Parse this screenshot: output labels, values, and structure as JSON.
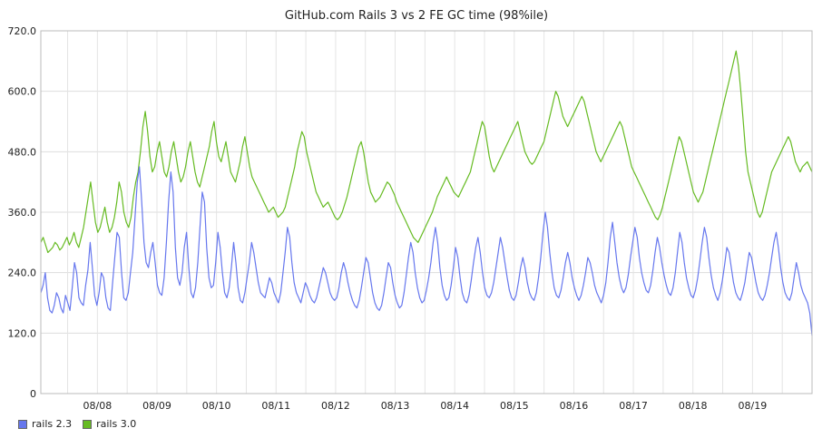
{
  "chart_data": {
    "type": "line",
    "title": "GitHub.com Rails 3 vs 2 FE GC time (98%ile)",
    "xlabel": "",
    "ylabel": "",
    "ylim": [
      0,
      720
    ],
    "y_ticks": [
      "0",
      "120.0",
      "240.0",
      "360.0",
      "480.0",
      "600.0",
      "720.0"
    ],
    "x_ticks": [
      "08/08",
      "08/09",
      "08/10",
      "08/11",
      "08/12",
      "08/13",
      "08/14",
      "08/15",
      "08/16",
      "08/17",
      "08/18",
      "08/19"
    ],
    "grid": true,
    "legend_position": "bottom-left",
    "series": [
      {
        "name": "rails 2.3",
        "color": "#6677ee",
        "values": [
          200,
          215,
          240,
          190,
          165,
          160,
          175,
          200,
          190,
          170,
          160,
          195,
          180,
          165,
          210,
          260,
          240,
          190,
          180,
          175,
          215,
          245,
          300,
          250,
          195,
          175,
          200,
          240,
          230,
          190,
          170,
          165,
          220,
          270,
          320,
          310,
          240,
          190,
          185,
          200,
          240,
          280,
          350,
          420,
          450,
          380,
          300,
          260,
          250,
          280,
          300,
          260,
          215,
          200,
          195,
          230,
          300,
          380,
          440,
          400,
          290,
          230,
          215,
          240,
          290,
          320,
          250,
          200,
          190,
          210,
          260,
          330,
          400,
          380,
          290,
          230,
          210,
          215,
          260,
          320,
          290,
          240,
          200,
          190,
          210,
          250,
          300,
          260,
          210,
          185,
          180,
          200,
          230,
          260,
          300,
          280,
          250,
          220,
          200,
          195,
          190,
          210,
          230,
          220,
          200,
          190,
          180,
          200,
          240,
          280,
          330,
          310,
          260,
          220,
          200,
          190,
          180,
          200,
          220,
          210,
          195,
          185,
          180,
          190,
          210,
          230,
          250,
          240,
          220,
          200,
          190,
          185,
          190,
          210,
          240,
          260,
          245,
          220,
          200,
          185,
          175,
          170,
          185,
          210,
          240,
          270,
          260,
          230,
          200,
          180,
          170,
          165,
          175,
          200,
          230,
          260,
          250,
          220,
          195,
          180,
          170,
          175,
          200,
          235,
          270,
          300,
          280,
          240,
          210,
          190,
          180,
          185,
          205,
          230,
          260,
          300,
          330,
          300,
          250,
          215,
          195,
          185,
          190,
          215,
          250,
          290,
          270,
          230,
          200,
          185,
          180,
          195,
          225,
          260,
          290,
          310,
          280,
          240,
          210,
          195,
          190,
          200,
          220,
          250,
          280,
          310,
          290,
          260,
          230,
          205,
          190,
          185,
          195,
          220,
          250,
          270,
          250,
          220,
          200,
          190,
          185,
          200,
          230,
          270,
          320,
          360,
          330,
          280,
          240,
          210,
          195,
          190,
          205,
          230,
          260,
          280,
          260,
          230,
          210,
          195,
          185,
          195,
          215,
          240,
          270,
          260,
          240,
          215,
          200,
          190,
          180,
          195,
          220,
          260,
          310,
          340,
          300,
          260,
          230,
          210,
          200,
          210,
          235,
          270,
          300,
          330,
          310,
          270,
          240,
          220,
          205,
          200,
          215,
          245,
          280,
          310,
          290,
          260,
          235,
          215,
          200,
          195,
          210,
          240,
          280,
          320,
          300,
          260,
          230,
          210,
          195,
          190,
          205,
          230,
          265,
          300,
          330,
          310,
          270,
          235,
          210,
          195,
          185,
          200,
          225,
          255,
          290,
          280,
          250,
          220,
          200,
          190,
          185,
          200,
          220,
          250,
          280,
          270,
          245,
          220,
          200,
          190,
          185,
          195,
          215,
          240,
          270,
          300,
          320,
          290,
          250,
          220,
          200,
          190,
          185,
          200,
          230,
          260,
          240,
          215,
          200,
          190,
          180,
          160,
          115
        ]
      },
      {
        "name": "rails 3.0",
        "color": "#66bb22",
        "values": [
          300,
          310,
          295,
          280,
          285,
          290,
          300,
          295,
          285,
          290,
          300,
          310,
          295,
          305,
          320,
          300,
          290,
          310,
          330,
          360,
          390,
          420,
          380,
          340,
          320,
          330,
          350,
          370,
          340,
          320,
          330,
          350,
          380,
          420,
          400,
          360,
          340,
          330,
          350,
          390,
          420,
          440,
          480,
          530,
          560,
          520,
          470,
          440,
          450,
          480,
          500,
          470,
          440,
          430,
          450,
          480,
          500,
          470,
          440,
          420,
          430,
          450,
          480,
          500,
          470,
          440,
          420,
          410,
          430,
          450,
          470,
          490,
          520,
          540,
          500,
          470,
          460,
          480,
          500,
          470,
          440,
          430,
          420,
          440,
          460,
          490,
          510,
          480,
          450,
          430,
          420,
          410,
          400,
          390,
          380,
          370,
          360,
          365,
          370,
          360,
          350,
          355,
          360,
          370,
          390,
          410,
          430,
          450,
          480,
          500,
          520,
          510,
          480,
          460,
          440,
          420,
          400,
          390,
          380,
          370,
          375,
          380,
          370,
          360,
          350,
          345,
          350,
          360,
          375,
          390,
          410,
          430,
          450,
          470,
          490,
          500,
          480,
          450,
          420,
          400,
          390,
          380,
          385,
          390,
          400,
          410,
          420,
          415,
          405,
          395,
          380,
          370,
          360,
          350,
          340,
          330,
          320,
          310,
          305,
          300,
          310,
          320,
          330,
          340,
          350,
          360,
          375,
          390,
          400,
          410,
          420,
          430,
          420,
          410,
          400,
          395,
          390,
          400,
          410,
          420,
          430,
          440,
          460,
          480,
          500,
          520,
          540,
          530,
          500,
          470,
          450,
          440,
          450,
          460,
          470,
          480,
          490,
          500,
          510,
          520,
          530,
          540,
          520,
          500,
          480,
          470,
          460,
          455,
          460,
          470,
          480,
          490,
          500,
          520,
          540,
          560,
          580,
          600,
          590,
          570,
          550,
          540,
          530,
          540,
          550,
          560,
          570,
          580,
          590,
          580,
          560,
          540,
          520,
          500,
          480,
          470,
          460,
          470,
          480,
          490,
          500,
          510,
          520,
          530,
          540,
          530,
          510,
          490,
          470,
          450,
          440,
          430,
          420,
          410,
          400,
          390,
          380,
          370,
          360,
          350,
          345,
          355,
          370,
          390,
          410,
          430,
          450,
          470,
          490,
          510,
          500,
          480,
          460,
          440,
          420,
          400,
          390,
          380,
          390,
          400,
          420,
          440,
          460,
          480,
          500,
          520,
          540,
          560,
          580,
          600,
          620,
          640,
          660,
          680,
          650,
          600,
          540,
          480,
          440,
          420,
          400,
          380,
          360,
          350,
          360,
          380,
          400,
          420,
          440,
          450,
          460,
          470,
          480,
          490,
          500,
          510,
          500,
          480,
          460,
          450,
          440,
          450,
          455,
          460,
          450,
          440
        ]
      }
    ]
  }
}
